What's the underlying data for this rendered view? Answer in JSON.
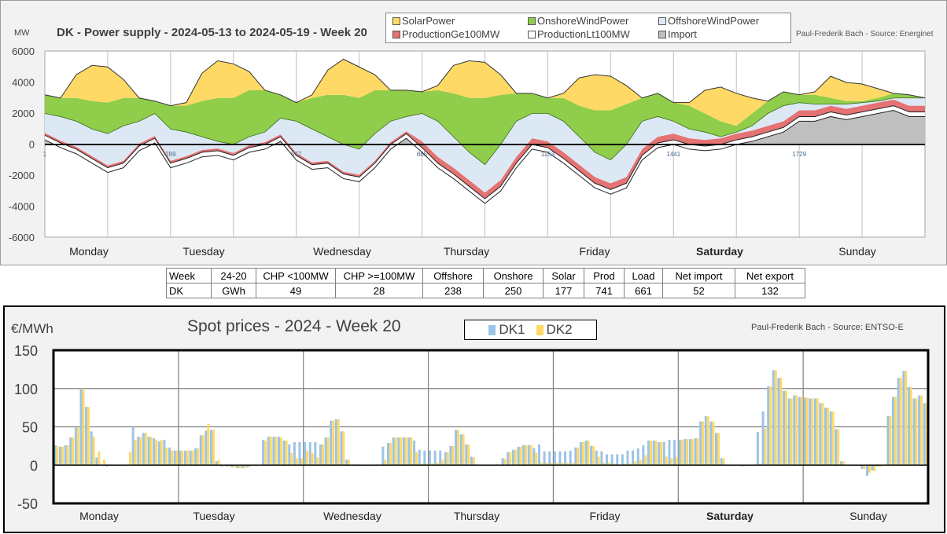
{
  "top_chart": {
    "unit": "MW",
    "title": "DK - Power supply - 2024-05-13 to 2024-05-19 - Week 20",
    "credit": "Paul-Frederik Bach - Source: Energinet",
    "legend": [
      {
        "label": "SolarPower",
        "color": "#ffd966"
      },
      {
        "label": "OnshoreWindPower",
        "color": "#8fcd4a"
      },
      {
        "label": "OffshoreWindPower",
        "color": "#dde8f5"
      },
      {
        "label": "ProductionGe100MW",
        "color": "#e57373"
      },
      {
        "label": "ProductionLt100MW",
        "color": "#ffffff"
      },
      {
        "label": "Import",
        "color": "#bfbfbf"
      }
    ],
    "y_ticks": [
      "6000",
      "4000",
      "2000",
      "0",
      "-2000",
      "-4000",
      "-6000"
    ],
    "x_ticks": [
      "1",
      "289",
      "577",
      "865",
      "1153",
      "1441",
      "1729"
    ],
    "days": [
      "Monday",
      "Tuesday",
      "Wednesday",
      "Thursday",
      "Friday",
      "Saturday",
      "Sunday"
    ]
  },
  "table": {
    "header": [
      "Week",
      "24-20",
      "CHP <100MW",
      "CHP >=100MW",
      "Offshore",
      "Onshore",
      "Solar",
      "Prod",
      "Load",
      "Net import",
      "Net export"
    ],
    "row": [
      "DK",
      "GWh",
      "49",
      "28",
      "238",
      "250",
      "177",
      "741",
      "661",
      "52",
      "132"
    ]
  },
  "bottom_chart": {
    "unit": "€/MWh",
    "title": "Spot prices - 2024 - Week 20",
    "credit": "Paul-Frederik Bach - Source: ENTSO-E",
    "legend": [
      {
        "label": "DK1",
        "color": "#9dc3e6"
      },
      {
        "label": "DK2",
        "color": "#ffd966"
      }
    ],
    "y_ticks": [
      "150",
      "100",
      "50",
      "0",
      "-50"
    ],
    "days": [
      "Monday",
      "Tuesday",
      "Wednesday",
      "Thursday",
      "Friday",
      "Saturday",
      "Sunday"
    ]
  },
  "chart_data": [
    {
      "type": "area",
      "title": "DK - Power supply - 2024-05-13 to 2024-05-19 - Week 20",
      "ylabel": "MW",
      "ylim": [
        -6000,
        6000
      ],
      "x_resolution": "3 hours, 2024-05-13 00:00 to 2024-05-20 00:00",
      "stacking": "Import (negative = export), ProductionLt100MW, ProductionGe100MW, OffshoreWindPower, OnshoreWindPower, SolarPower",
      "series": [
        {
          "name": "Import",
          "values": [
            300,
            -200,
            -600,
            -1200,
            -1800,
            -1500,
            -400,
            100,
            -1500,
            -1200,
            -800,
            -700,
            -1000,
            -500,
            -300,
            200,
            -1000,
            -1600,
            -1500,
            -2200,
            -2400,
            -1500,
            -300,
            400,
            -500,
            -1500,
            -2200,
            -3000,
            -3800,
            -3000,
            -1500,
            -300,
            -500,
            -1200,
            -2000,
            -2800,
            -3200,
            -2800,
            -1000,
            -200,
            0,
            -300,
            -400,
            -300,
            0,
            200,
            500,
            800,
            1500,
            1500,
            1800,
            1600,
            1800,
            2000,
            2200,
            1800,
            1800
          ]
        },
        {
          "name": "ProductionLt100MW",
          "values": [
            300,
            300,
            300,
            300,
            300,
            300,
            300,
            300,
            300,
            300,
            300,
            300,
            300,
            300,
            300,
            300,
            300,
            300,
            300,
            300,
            300,
            300,
            300,
            300,
            300,
            300,
            300,
            300,
            300,
            300,
            300,
            300,
            300,
            300,
            300,
            300,
            300,
            300,
            300,
            300,
            300,
            300,
            300,
            300,
            300,
            300,
            300,
            300,
            300,
            300,
            300,
            300,
            300,
            300,
            300,
            300,
            300
          ]
        },
        {
          "name": "ProductionGe100MW",
          "values": [
            150,
            150,
            150,
            150,
            150,
            150,
            150,
            150,
            150,
            150,
            150,
            150,
            150,
            150,
            150,
            150,
            150,
            150,
            150,
            150,
            150,
            150,
            150,
            150,
            400,
            400,
            400,
            400,
            400,
            400,
            400,
            400,
            400,
            400,
            400,
            400,
            400,
            400,
            400,
            400,
            400,
            400,
            400,
            400,
            400,
            400,
            400,
            400,
            400,
            400,
            400,
            400,
            400,
            400,
            400,
            400,
            400
          ]
        },
        {
          "name": "OffshoreWindPower",
          "values": [
            1250,
            1550,
            1650,
            1750,
            2050,
            2250,
            1450,
            1450,
            2050,
            1550,
            850,
            450,
            550,
            550,
            650,
            1050,
            2050,
            2150,
            1550,
            1750,
            1650,
            1750,
            1350,
            950,
            1800,
            2300,
            2000,
            1800,
            1800,
            2300,
            2300,
            1600,
            1800,
            2000,
            1800,
            1600,
            1500,
            2100,
            1800,
            1300,
            800,
            600,
            500,
            100,
            100,
            300,
            800,
            1000,
            500,
            400,
            100,
            300,
            200,
            100,
            100,
            500,
            500
          ]
        },
        {
          "name": "OnshoreWindPower",
          "values": [
            1200,
            1200,
            1500,
            1800,
            2000,
            1800,
            1500,
            800,
            1500,
            1700,
            2300,
            2800,
            3000,
            3000,
            2700,
            1500,
            1200,
            2000,
            2700,
            3200,
            3300,
            2800,
            2000,
            1700,
            1400,
            2000,
            2800,
            3500,
            4300,
            3200,
            1800,
            1300,
            1000,
            1500,
            2000,
            2700,
            3200,
            2600,
            1500,
            1500,
            1200,
            1500,
            1200,
            1000,
            400,
            800,
            800,
            900,
            500,
            600,
            400,
            200,
            100,
            200,
            300,
            200,
            0
          ]
        },
        {
          "name": "SolarPower",
          "values": [
            0,
            0,
            1500,
            2300,
            2300,
            1200,
            0,
            0,
            0,
            200,
            1800,
            2400,
            2200,
            1200,
            0,
            0,
            0,
            200,
            1600,
            2300,
            2000,
            1000,
            0,
            0,
            0,
            300,
            1800,
            2400,
            2300,
            1300,
            0,
            0,
            0,
            300,
            1800,
            2300,
            2200,
            1200,
            0,
            0,
            0,
            200,
            1500,
            2200,
            2100,
            1000,
            0,
            0,
            0,
            200,
            1400,
            1200,
            1100,
            600,
            0,
            0,
            0
          ]
        }
      ]
    },
    {
      "type": "bar",
      "title": "Spot prices - 2024 - Week 20",
      "ylabel": "€/MWh",
      "ylim": [
        -50,
        150
      ],
      "x_resolution": "hourly, Monday 00:00 to Sunday 23:00",
      "series": [
        {
          "name": "DK1",
          "values": [
            26,
            24,
            26,
            36,
            49,
            100,
            76,
            44,
            10,
            0,
            -2,
            -1,
            -1,
            0,
            0,
            50,
            37,
            42,
            37,
            35,
            31,
            33,
            23,
            19,
            19,
            19,
            19,
            22,
            39,
            45,
            46,
            5,
            -2,
            -2,
            -3,
            -4,
            -4,
            -3,
            -1,
            0,
            33,
            37,
            37,
            37,
            32,
            27,
            30,
            30,
            30,
            30,
            30,
            27,
            36,
            58,
            60,
            44,
            7,
            0,
            -1,
            -1,
            0,
            0,
            1,
            24,
            29,
            36,
            36,
            36,
            36,
            32,
            20,
            19,
            19,
            19,
            19,
            17,
            25,
            46,
            40,
            27,
            11,
            1,
            0,
            0,
            0,
            1,
            9,
            17,
            20,
            24,
            26,
            26,
            22,
            27,
            18,
            18,
            18,
            18,
            18,
            19,
            23,
            30,
            32,
            25,
            19,
            18,
            14,
            14,
            14,
            14,
            19,
            19,
            22,
            26,
            32,
            32,
            30,
            30,
            33,
            33,
            33,
            34,
            34,
            35,
            57,
            64,
            57,
            42,
            9,
            0,
            0,
            0,
            -2,
            -1,
            0,
            43,
            70,
            103,
            124,
            114,
            97,
            87,
            91,
            89,
            88,
            87,
            87,
            81,
            75,
            70,
            47,
            5,
            0,
            0,
            -1,
            -5,
            -14,
            -7,
            -2,
            0,
            64,
            89,
            114,
            123,
            102,
            87,
            91,
            81
          ]
        },
        {
          "name": "DK2",
          "values": [
            25,
            24,
            26,
            36,
            49,
            100,
            76,
            37,
            18,
            7,
            0,
            0,
            0,
            0,
            17,
            33,
            37,
            42,
            37,
            33,
            33,
            23,
            19,
            19,
            19,
            19,
            19,
            22,
            39,
            54,
            46,
            7,
            0,
            -2,
            -3,
            -4,
            -4,
            -2,
            0,
            0,
            32,
            37,
            37,
            36,
            32,
            16,
            9,
            9,
            19,
            16,
            10,
            27,
            36,
            58,
            60,
            44,
            7,
            1,
            0,
            0,
            0,
            0,
            0,
            7,
            29,
            36,
            36,
            36,
            36,
            17,
            2,
            2,
            2,
            3,
            7,
            17,
            25,
            46,
            40,
            27,
            10,
            0,
            0,
            0,
            0,
            0,
            8,
            17,
            20,
            24,
            26,
            26,
            16,
            3,
            3,
            3,
            3,
            3,
            3,
            3,
            23,
            30,
            32,
            25,
            11,
            3,
            3,
            2,
            1,
            2,
            2,
            5,
            7,
            13,
            32,
            32,
            30,
            11,
            9,
            10,
            33,
            34,
            34,
            35,
            57,
            64,
            57,
            42,
            9,
            0,
            0,
            0,
            -1,
            -1,
            0,
            2,
            48,
            103,
            124,
            114,
            97,
            87,
            91,
            89,
            88,
            87,
            87,
            81,
            75,
            70,
            47,
            5,
            0,
            0,
            -1,
            -5,
            -10,
            -8,
            -2,
            0,
            64,
            89,
            114,
            123,
            102,
            87,
            91,
            81
          ]
        }
      ]
    }
  ]
}
